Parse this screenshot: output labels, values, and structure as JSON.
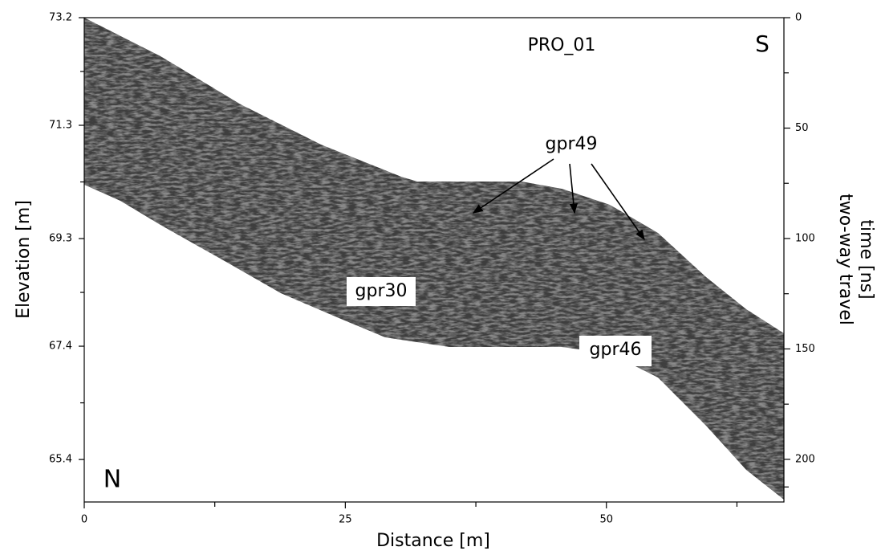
{
  "chart_data": {
    "type": "radargram",
    "xlabel": "Distance [m]",
    "ylabel": "Elevation [m]",
    "y2label": [
      "two-way travel",
      "time [ns]"
    ],
    "xlim": [
      0,
      67
    ],
    "xticks": [
      0,
      25,
      50
    ],
    "xminorticks": [
      12.5,
      37.5,
      62.5
    ],
    "ylim": [
      64.65,
      73.2
    ],
    "yticks": [
      73.2,
      71.3,
      69.3,
      67.4,
      65.4
    ],
    "yminorticks": [
      72.25,
      70.3,
      68.35,
      66.4
    ],
    "y2lim": [
      0,
      219.3
    ],
    "y2_inverted": true,
    "y2ticks": [
      0,
      50,
      100,
      150,
      200
    ],
    "y2minorticks": [
      25,
      75,
      125,
      175,
      212.5
    ],
    "annotations": {
      "profile": "PRO_01",
      "south": "S",
      "north": "N",
      "gpr49": "gpr49",
      "gpr30": "gpr30",
      "gpr46": "gpr46"
    }
  }
}
